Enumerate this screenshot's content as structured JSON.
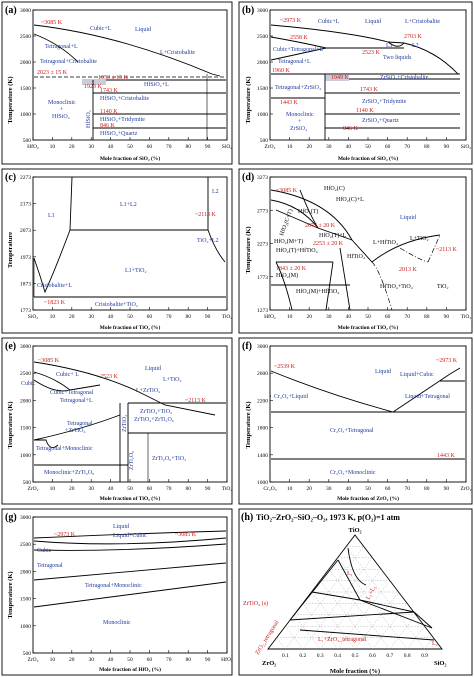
{
  "panels": {
    "a": {
      "tag": "(a)",
      "ylabel": "Temperature (K)",
      "xlabel": "Mole fraction of SiO₂ (%)",
      "yticks": [
        "3000",
        "2500",
        "2000",
        "1500",
        "1000",
        "500"
      ],
      "xticks": [
        "HfO₂",
        "10",
        "20",
        "30",
        "40",
        "50",
        "60",
        "70",
        "80",
        "90",
        "SiO₂"
      ],
      "labels": {
        "t3085": "~3085 K",
        "cubic_l": "Cubic+L",
        "liquid": "Liquid",
        "tetr_l": "Tetragonal+L",
        "l_crist": "L+Cristobalite",
        "tetr_crist": "Tetragonal+Cristobalite",
        "t2023": "2023 ± 15 K",
        "t1953": "1953 ± 15 K",
        "hfsio4_l": "HfSiO₄+L",
        "t1923": "1923 K",
        "t1743": "1743 K",
        "hfsio4_crist": "HfSiO₄+Cristobalite",
        "mono_hfsio4": "Monoclinic\n+\nHfSiO₄",
        "hfsio4": "HfSiO₄",
        "t1140": "1140 K",
        "hfsio4_trid": "HfSiO₄+Tridymite",
        "t846": "846 K",
        "hfsio4_quartz": "HfSiO₄+Quartz"
      }
    },
    "b": {
      "tag": "(b)",
      "ylabel": "Temperature (K)",
      "xlabel": "Mole fraction of SiO₂ (%)",
      "yticks": [
        "3000",
        "2500",
        "2000",
        "1500",
        "1000",
        "500"
      ],
      "xticks": [
        "ZrO₂",
        "10",
        "20",
        "30",
        "40",
        "50",
        "60",
        "70",
        "80",
        "90",
        "SiO₂"
      ],
      "labels": {
        "t2973": "~2973 K",
        "cubic_l": "Cubic+L",
        "liquid": "Liquid",
        "l_crist": "L+Cristobalite",
        "t2558": "2558 K",
        "t2703": "2703 K",
        "l1": "L1",
        "l2": "L2",
        "t2523": "2523 K",
        "cubic_tetr_l": "Cubic+Tetragonal+L",
        "two_liq": "Two liquids",
        "tetr_l": "Tetragonal+L",
        "t1960": "1960 K",
        "t1949": "1949 K",
        "zrsio4_crist": "ZrSiO₄+Cristobalite",
        "tetr_zrsio4": "Tetragonal+ZrSiO₄",
        "t1743": "1743 K",
        "t1443": "1443 K",
        "zrsio4_trid": "ZrSiO₄+Tridymite",
        "mono_zrsio4": "Monoclinic\n+\nZrSiO₄",
        "t1140": "1140 K",
        "zrsio4_quartz": "ZrSiO₄+Quartz",
        "t846": "846 K"
      }
    },
    "c": {
      "tag": "(c)",
      "ylabel": "Temperature",
      "xlabel": "Mole fraction of TiO₂ (%)",
      "yticks": [
        "2273",
        "2173",
        "2073",
        "1973",
        "1873",
        "1773"
      ],
      "xticks": [
        "SiO₂",
        "10",
        "20",
        "30",
        "40",
        "50",
        "60",
        "70",
        "80",
        "90",
        "TiO₂"
      ],
      "labels": {
        "l1": "L1",
        "l1l2": "L1+L2",
        "l2": "L2",
        "t2113": "~2113 K",
        "tio2_l2": "TiO₂+L2",
        "l1_tio2": "L1+TiO₂",
        "crist_l": "Cristobalite+L",
        "t1823": "~1823 K",
        "crist_tio2": "Cristobalite+TiO₂"
      }
    },
    "d": {
      "tag": "(d)",
      "ylabel": "Temperature (K)",
      "xlabel": "Mole fraction of TiO₂ (%)",
      "yticks": [
        "3273",
        "2773",
        "2273",
        "1773",
        "1273"
      ],
      "xticks": [
        "HfO₂",
        "10",
        "20",
        "30",
        "40",
        "50",
        "60",
        "70",
        "80",
        "90",
        "TiO₂"
      ],
      "labels": {
        "t3085": "~3085 K",
        "hfo2c": "HfO₂(C)",
        "hfo2c_l": "HfO₂(C)+L",
        "hfo2t": "HfO₂(T)",
        "liquid": "Liquid",
        "hfo2c_t": "HfO₂(C+T)",
        "t2073": "2073 ± 20 K",
        "t2253": "2253 ± 20 K",
        "hfo2t_l": "HfO₂(T)+L",
        "l_hftio4": "L+HfTiO₄",
        "l_tio2": "L+TiO₂",
        "t2113": "~2113 K",
        "hfo2t_hftio4": "HfO₂(T)+HfTiO₄",
        "hfo2mt": "HfO₂(M+T)",
        "hftio4": "HfTiO₄",
        "t2013": "2013 K",
        "t1843": "1843 ± 20 K",
        "hfo2m": "HfO₂(M)",
        "hfo2m_hftio4": "HfO₂(M)+HfTiO₄",
        "hftio4_tio2": "HfTiO₄+TiO₂",
        "tio2": "TiO₂"
      }
    },
    "e": {
      "tag": "(e)",
      "ylabel": "Temperature (K)",
      "xlabel": "Mole fraction of TiO₂ (%)",
      "yticks": [
        "3000",
        "2500",
        "2000",
        "1500",
        "1000",
        "500"
      ],
      "xticks": [
        "ZrO₂",
        "10",
        "20",
        "30",
        "40",
        "50",
        "60",
        "70",
        "80",
        "90",
        "TiO₂"
      ],
      "labels": {
        "t3085": "~3085 K",
        "liquid": "Liquid",
        "cubic_l": "Cubic+ L",
        "t2523": "2523 K",
        "l_tio2": "L+TiO₂",
        "cubic": "Cubic",
        "l_zrtio4": "L+ZrTiO₄",
        "cubic_tetr": "Cubic+Tetragonal",
        "tetr_l": "Tetragonal+L",
        "t2113": "~2113 K",
        "zrtio4": "ZrTiO₄",
        "tetr_zrtio4": "Tetragonal\n+ZrTiO₄",
        "zrtio4_tio2": "ZrTiO₄+TiO₂",
        "zrtio4_zrti2o6": "ZrTiO₄+ZrTi₂O₆",
        "tetr_mono": "Tetragonal+Monoclinic",
        "mono_zrtio4": "Monoclinic+ZrTi₂O₆",
        "zrti2o6": "ZrTi₂O₆",
        "zrti2o6_tio2": "ZrTi₂O₆+TiO₂"
      }
    },
    "f": {
      "tag": "(f)",
      "ylabel": "Temperature (K)",
      "xlabel": "Mole fraction of ZrO₂ (%)",
      "yticks": [
        "3000",
        "2600",
        "2200",
        "1800",
        "1400",
        "1000"
      ],
      "xticks": [
        "Cr₂O₃",
        "10",
        "20",
        "30",
        "40",
        "50",
        "60",
        "70",
        "80",
        "90",
        "ZrO₂"
      ],
      "labels": {
        "t2539": "~2539 K",
        "t2973": "~2973 K",
        "liquid": "Liquid",
        "liq_cubic": "Liquid+Cubic",
        "cr_liq": "Cr₂O₃+Liquid",
        "liq_tetr": "Liquid+Tetragonal",
        "cr_tetr": "Cr₂O₃+Tetragonal",
        "t1443": "1443 K",
        "cr_mono": "Cr₂O₃+Monoclinic"
      }
    },
    "g": {
      "tag": "(g)",
      "ylabel": "Temperature (K)",
      "xlabel": "Mole fraction of HfO₂ (%)",
      "yticks": [
        "3000",
        "2500",
        "2000",
        "1500",
        "1000",
        "500"
      ],
      "xticks": [
        "ZrO₂",
        "10",
        "20",
        "30",
        "40",
        "50",
        "60",
        "70",
        "80",
        "90",
        "HfO₂"
      ],
      "labels": {
        "liquid": "Liquid",
        "liq_cubic": "Liquid+Cubic",
        "t2973": "~2973 K",
        "t3085": "~3085 K",
        "cubic": "Cubic",
        "tetragonal": "Tetragonal",
        "tetr_mono": "Tetragonal+Monoclinic",
        "monoclinic": "Monoclinic"
      }
    },
    "h": {
      "tag": "(h)",
      "title": "TiO₂–ZrO₂–SiO₂–O₂, 1973 K, p(O₂)=1 atm",
      "xlabel": "Mole fraction (%)",
      "apex_top": "TiO₂",
      "apex_left": "ZrO₂",
      "apex_right": "SiO₂",
      "bottom_ticks": [
        "0.1",
        "0.2",
        "0.3",
        "0.4",
        "0.5",
        "0.6",
        "0.7",
        "0.8",
        "0.9"
      ],
      "labels": {
        "zrtio4": "ZrTiO₄ (s)",
        "zro2_tetr": "ZrO₂_tetragonal",
        "l1": "L₁",
        "l1l2": "L₁+L₂",
        "l1_zro2": "L₁+ZrO₂_tetragonal",
        "l2": "L₂"
      }
    }
  }
}
